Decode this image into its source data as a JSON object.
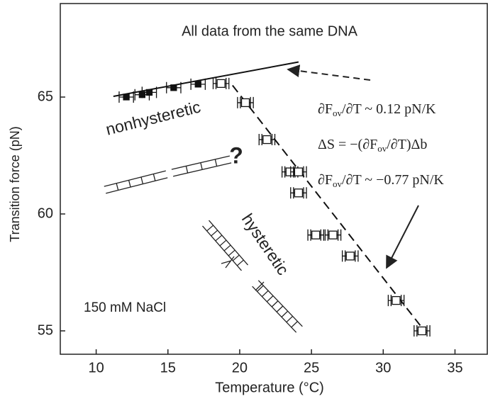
{
  "chart_data": {
    "type": "scatter",
    "title": "All data from the same DNA",
    "x_label": "Temperature (°C)",
    "y_label": "Transition force (pN)",
    "xlim": [
      7.5,
      37.3
    ],
    "ylim": [
      54,
      69
    ],
    "xticks": [
      10,
      15,
      20,
      25,
      30,
      35
    ],
    "yticks": [
      55,
      60,
      65
    ],
    "color": "#111111",
    "series": [
      {
        "marker": "filled-square",
        "x": [
          12.1,
          13.2,
          13.7,
          15.4,
          17.1
        ],
        "y": [
          65.0,
          65.1,
          65.2,
          65.4,
          65.55
        ],
        "xerr": [
          0.5,
          0.5,
          0.5,
          0.5,
          0.5
        ]
      },
      {
        "marker": "open-square",
        "x": [
          18.7,
          20.4,
          21.9,
          23.5,
          24.1,
          24.1,
          25.3,
          26.5,
          27.7,
          30.9,
          32.7
        ],
        "y": [
          65.58,
          64.76,
          63.18,
          61.8,
          61.8,
          60.9,
          59.1,
          59.1,
          58.2,
          56.3,
          55.0
        ],
        "xerr": [
          0.55,
          0.55,
          0.55,
          0.55,
          0.55,
          0.55,
          0.55,
          0.55,
          0.55,
          0.55,
          0.55
        ]
      }
    ],
    "lines": [
      {
        "style": "solid",
        "x": [
          11.2,
          24.1
        ],
        "y": [
          65.03,
          66.5
        ]
      },
      {
        "style": "dashed",
        "x": [
          19.5,
          33.0
        ],
        "y": [
          65.5,
          54.9
        ]
      }
    ],
    "annotations": {
      "nonhysteretic": "nonhysteretic",
      "hysteretic": "hysteretic",
      "question": "?",
      "salt": "150 mM NaCl",
      "eq1": [
        "∂F",
        "ov",
        "/∂T ~ 0.12  pN/K"
      ],
      "eq2": [
        "ΔS = −(∂F",
        "ov",
        "/∂T)Δb"
      ],
      "eq3": [
        "∂F",
        "ov",
        "/∂T ~ −0.77  pN/K"
      ]
    }
  }
}
